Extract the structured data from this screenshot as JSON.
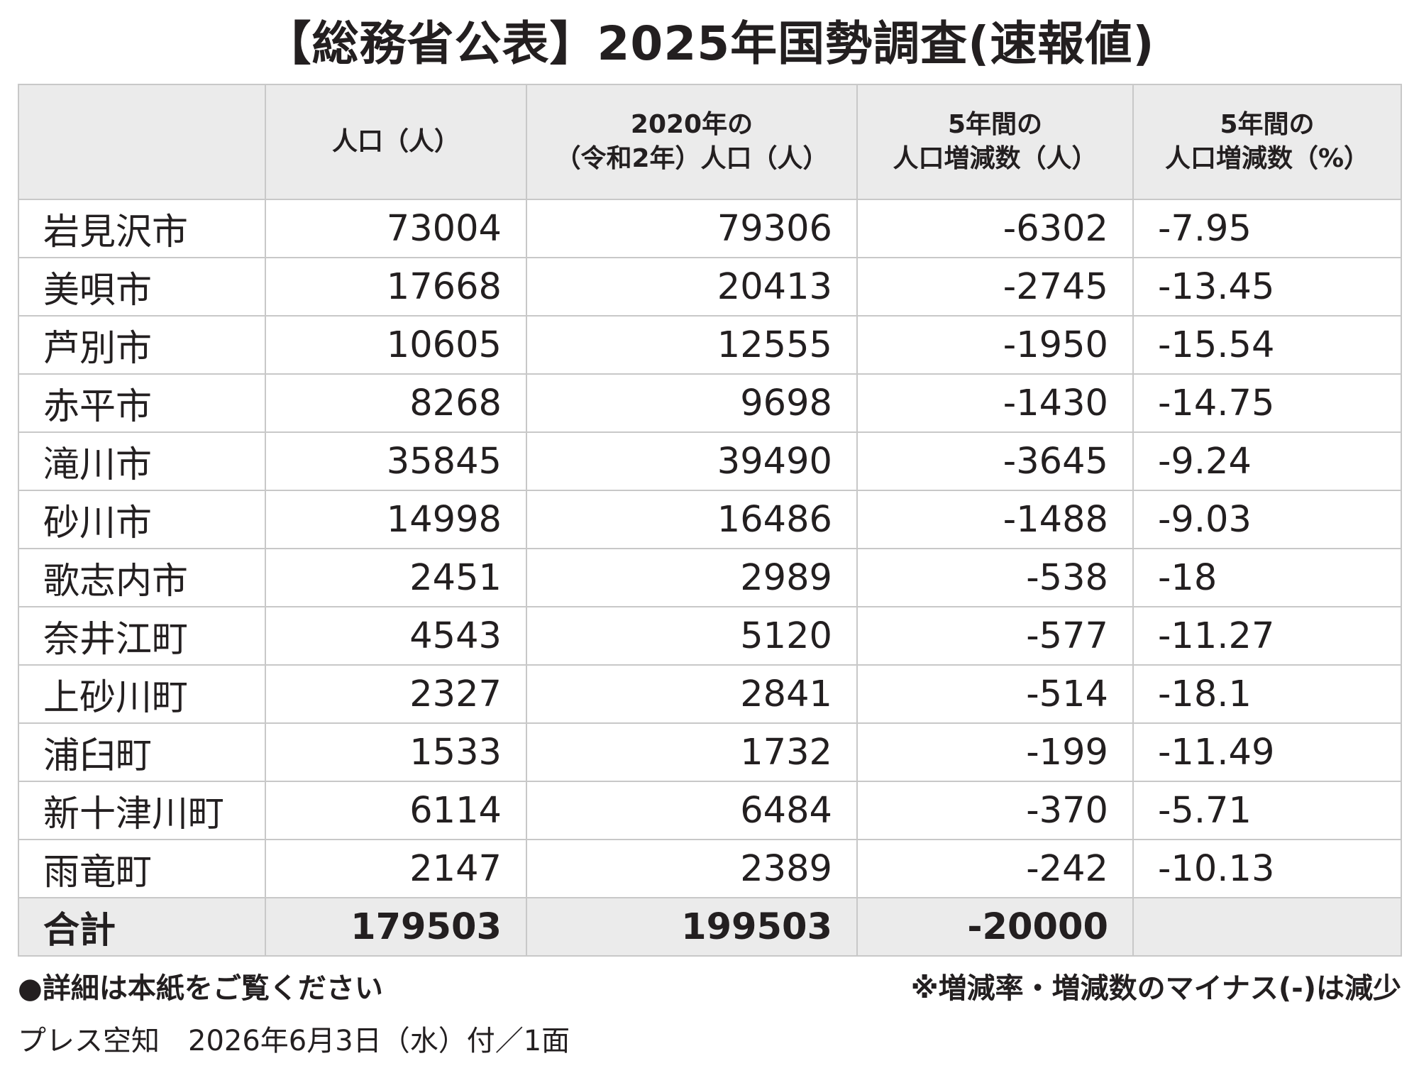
{
  "title": "【総務省公表】2025年国勢調査(速報値)",
  "table": {
    "header": [
      [
        "人口（人）"
      ],
      [
        "2020年の",
        "（令和2年）人口（人）"
      ],
      [
        "5年間の",
        "人口増減数（人）"
      ],
      [
        "5年間の",
        "人口増減数（%）"
      ]
    ],
    "rows": [
      [
        "岩見沢市",
        73004,
        79306,
        -6302,
        -7.95
      ],
      [
        "美唄市",
        17668,
        20413,
        -2745,
        -13.45
      ],
      [
        "芦別市",
        10605,
        12555,
        -1950,
        -15.54
      ],
      [
        "赤平市",
        8268,
        9698,
        -1430,
        -14.75
      ],
      [
        "滝川市",
        35845,
        39490,
        -3645,
        -9.24
      ],
      [
        "砂川市",
        14998,
        16486,
        -1488,
        -9.03
      ],
      [
        "歌志内市",
        2451,
        2989,
        -538,
        -18
      ],
      [
        "奈井江町",
        4543,
        5120,
        -577,
        -11.27
      ],
      [
        "上砂川町",
        2327,
        2841,
        -514,
        -18.1
      ],
      [
        "浦臼町",
        1533,
        1732,
        -199,
        -11.49
      ],
      [
        "新十津川町",
        6114,
        6484,
        -370,
        -5.71
      ],
      [
        "雨竜町",
        2147,
        2389,
        -242,
        -10.13
      ]
    ],
    "total": [
      "合計",
      179503,
      199503,
      -20000
    ]
  },
  "notes": {
    "left": "●詳細は本紙をご覧ください",
    "right": "※増減率・増減数のマイナス(-)は減少"
  },
  "footer": "プレス空知　2026年6月3日（水）付／1面"
}
